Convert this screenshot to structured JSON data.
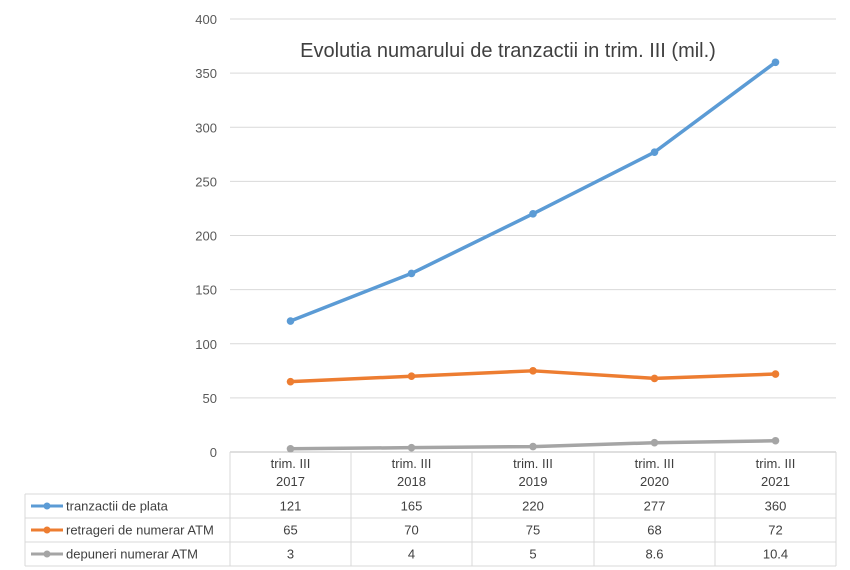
{
  "chart_data": {
    "type": "line",
    "title": "Evolutia numarului de tranzactii in trim. III (mil.)",
    "categories": [
      [
        "trim. III",
        "2017"
      ],
      [
        "trim. III",
        "2018"
      ],
      [
        "trim. III",
        "2019"
      ],
      [
        "trim. III",
        "2020"
      ],
      [
        "trim. III",
        "2021"
      ]
    ],
    "ylim": [
      0,
      400
    ],
    "yticks": [
      "0",
      "50",
      "100",
      "150",
      "200",
      "250",
      "300",
      "350",
      "400"
    ],
    "grid": true,
    "legend": "data-table-left",
    "series": [
      {
        "name": "tranzactii de plata",
        "color": "#5B9BD5",
        "values": [
          121,
          165,
          220,
          277,
          360
        ],
        "labels": [
          "121",
          "165",
          "220",
          "277",
          "360"
        ]
      },
      {
        "name": "retrageri de numerar ATM",
        "color": "#ED7D31",
        "values": [
          65,
          70,
          75,
          68,
          72
        ],
        "labels": [
          "65",
          "70",
          "75",
          "68",
          "72"
        ]
      },
      {
        "name": "depuneri numerar ATM",
        "color": "#A5A5A5",
        "values": [
          3,
          4,
          5,
          8.6,
          10.4
        ],
        "labels": [
          "3",
          "4",
          "5",
          "8.6",
          "10.4"
        ]
      }
    ]
  }
}
